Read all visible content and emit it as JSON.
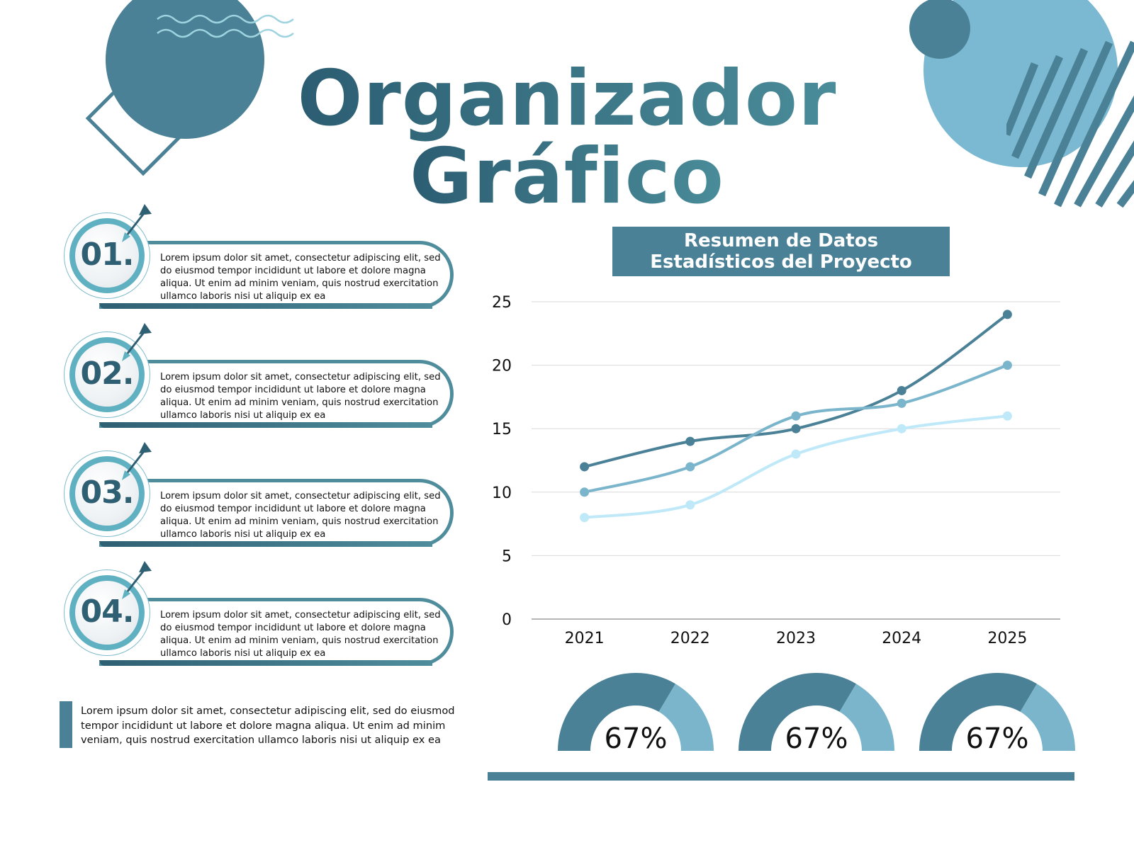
{
  "title": {
    "line1": "Organizador",
    "line2": "Gráfico"
  },
  "steps": [
    {
      "number": "01.",
      "text": "Lorem ipsum dolor sit amet, consectetur adipiscing elit, sed do eiusmod tempor incididunt ut labore et dolore magna aliqua. Ut enim ad minim veniam, quis nostrud exercitation ullamco laboris nisi ut aliquip ex ea"
    },
    {
      "number": "02.",
      "text": "Lorem ipsum dolor sit amet, consectetur adipiscing elit, sed do eiusmod tempor incididunt ut labore et dolore magna aliqua. Ut enim ad minim veniam, quis nostrud exercitation ullamco laboris nisi ut aliquip ex ea"
    },
    {
      "number": "03.",
      "text": "Lorem ipsum dolor sit amet, consectetur adipiscing elit, sed do eiusmod tempor incididunt ut labore et dolore magna aliqua. Ut enim ad minim veniam, quis nostrud exercitation ullamco laboris nisi ut aliquip ex ea"
    },
    {
      "number": "04.",
      "text": "Lorem ipsum dolor sit amet, consectetur adipiscing elit, sed do eiusmod tempor incididunt ut labore et dolore magna aliqua. Ut enim ad minim veniam, quis nostrud exercitation ullamco laboris nisi ut aliquip ex ea"
    }
  ],
  "note": "Lorem ipsum dolor sit amet, consectetur adipiscing elit, sed do eiusmod tempor incididunt ut labore et dolore magna aliqua. Ut enim ad minim veniam, quis nostrud exercitation ullamco laboris nisi ut aliquip ex ea",
  "chart_title": {
    "line1": "Resumen de Datos",
    "line2": "Estadísticos del Proyecto"
  },
  "chart_data": {
    "type": "line",
    "title": "Resumen de Datos Estadísticos del Proyecto",
    "x": [
      "2021",
      "2022",
      "2023",
      "2024",
      "2025"
    ],
    "series": [
      {
        "values": [
          12,
          14,
          15,
          18,
          24
        ],
        "color": "#4a8196"
      },
      {
        "values": [
          10,
          12,
          16,
          17,
          20
        ],
        "color": "#7ab5cc"
      },
      {
        "values": [
          8,
          9,
          13,
          15,
          16
        ],
        "color": "#bfe9f8"
      }
    ],
    "ylim": [
      0,
      25
    ],
    "yticks": [
      "0",
      "5",
      "10",
      "15",
      "20",
      "25"
    ],
    "xlabel": "",
    "ylabel": "",
    "grid": true,
    "legend": "none"
  },
  "gauges": [
    {
      "label": "67%",
      "value": 0.67
    },
    {
      "label": "67%",
      "value": 0.67
    },
    {
      "label": "67%",
      "value": 0.67
    }
  ],
  "colors": {
    "dark": "#4a8196",
    "mid": "#7ab5cc",
    "light": "#bfe9f8",
    "title": "#2e6b80"
  }
}
